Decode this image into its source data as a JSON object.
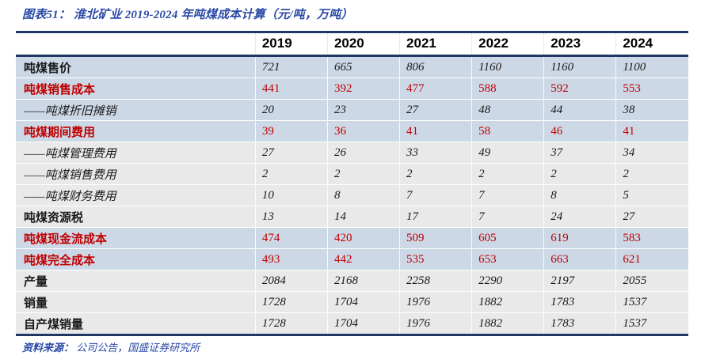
{
  "title": {
    "prefix": "图表51：",
    "text": "淮北矿业 2019-2024 年吨煤成本计算（元/吨，万吨）"
  },
  "colors": {
    "accent_blue": "#2b4aa6",
    "border_navy": "#1f3864",
    "highlight_red": "#c00000",
    "row_blue": "#cdd8e6",
    "row_gray": "#e9e9e9"
  },
  "chart_data": {
    "type": "table",
    "title": "图表51：淮北矿业 2019-2024 年吨煤成本计算（元/吨，万吨）",
    "categories": [
      "2019",
      "2020",
      "2021",
      "2022",
      "2023",
      "2024"
    ],
    "series": [
      {
        "name": "吨煤售价",
        "style": "black-bold",
        "band": "blue",
        "values": [
          721,
          665,
          806,
          1160,
          1160,
          1100
        ]
      },
      {
        "name": "吨煤销售成本",
        "style": "red",
        "band": "blue",
        "values": [
          441,
          392,
          477,
          588,
          592,
          553
        ]
      },
      {
        "name": "——吨煤折旧摊销",
        "style": "black-italic",
        "band": "blue",
        "values": [
          20,
          23,
          27,
          48,
          44,
          38
        ]
      },
      {
        "name": "吨煤期间费用",
        "style": "red",
        "band": "blue",
        "values": [
          39,
          36,
          41,
          58,
          46,
          41
        ]
      },
      {
        "name": "——吨煤管理费用",
        "style": "black-italic",
        "band": "gray",
        "values": [
          27,
          26,
          33,
          49,
          37,
          34
        ]
      },
      {
        "name": "——吨煤销售费用",
        "style": "black-italic",
        "band": "gray",
        "values": [
          2,
          2,
          2,
          2,
          2,
          2
        ]
      },
      {
        "name": "——吨煤财务费用",
        "style": "black-italic",
        "band": "gray",
        "values": [
          10,
          8,
          7,
          7,
          8,
          5
        ]
      },
      {
        "name": "吨煤资源税",
        "style": "black-bold",
        "band": "gray",
        "values": [
          13,
          14,
          17,
          7,
          24,
          27
        ]
      },
      {
        "name": "吨煤现金流成本",
        "style": "red",
        "band": "blue",
        "values": [
          474,
          420,
          509,
          605,
          619,
          583
        ]
      },
      {
        "name": "吨煤完全成本",
        "style": "red",
        "band": "blue",
        "values": [
          493,
          442,
          535,
          653,
          663,
          621
        ]
      },
      {
        "name": "产量",
        "style": "black-bold",
        "band": "gray",
        "values": [
          2084,
          2168,
          2258,
          2290,
          2197,
          2055
        ]
      },
      {
        "name": "销量",
        "style": "black-bold",
        "band": "gray",
        "values": [
          1728,
          1704,
          1976,
          1882,
          1783,
          1537
        ]
      },
      {
        "name": "自产煤销量",
        "style": "black-bold",
        "band": "gray",
        "values": [
          1728,
          1704,
          1976,
          1882,
          1783,
          1537
        ]
      }
    ]
  },
  "footer": {
    "source_prefix": "资料来源：",
    "source_text": "公司公告，国盛证券研究所"
  }
}
